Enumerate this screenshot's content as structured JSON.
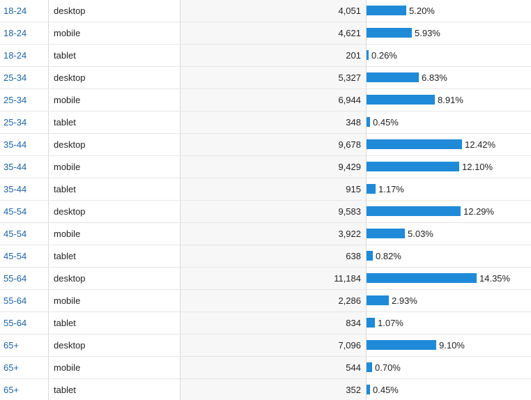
{
  "rows": [
    {
      "age": "18-24",
      "device": "desktop",
      "count": "4,051",
      "percent": "5.20%",
      "fraction": 0.052
    },
    {
      "age": "18-24",
      "device": "mobile",
      "count": "4,621",
      "percent": "5.93%",
      "fraction": 0.0593
    },
    {
      "age": "18-24",
      "device": "tablet",
      "count": "201",
      "percent": "0.26%",
      "fraction": 0.0026
    },
    {
      "age": "25-34",
      "device": "desktop",
      "count": "5,327",
      "percent": "6.83%",
      "fraction": 0.0683
    },
    {
      "age": "25-34",
      "device": "mobile",
      "count": "6,944",
      "percent": "8.91%",
      "fraction": 0.0891
    },
    {
      "age": "25-34",
      "device": "tablet",
      "count": "348",
      "percent": "0.45%",
      "fraction": 0.0045
    },
    {
      "age": "35-44",
      "device": "desktop",
      "count": "9,678",
      "percent": "12.42%",
      "fraction": 0.1242
    },
    {
      "age": "35-44",
      "device": "mobile",
      "count": "9,429",
      "percent": "12.10%",
      "fraction": 0.121
    },
    {
      "age": "35-44",
      "device": "tablet",
      "count": "915",
      "percent": "1.17%",
      "fraction": 0.0117
    },
    {
      "age": "45-54",
      "device": "desktop",
      "count": "9,583",
      "percent": "12.29%",
      "fraction": 0.1229
    },
    {
      "age": "45-54",
      "device": "mobile",
      "count": "3,922",
      "percent": "5.03%",
      "fraction": 0.0503
    },
    {
      "age": "45-54",
      "device": "tablet",
      "count": "638",
      "percent": "0.82%",
      "fraction": 0.0082
    },
    {
      "age": "55-64",
      "device": "desktop",
      "count": "11,184",
      "percent": "14.35%",
      "fraction": 0.1435
    },
    {
      "age": "55-64",
      "device": "mobile",
      "count": "2,286",
      "percent": "2.93%",
      "fraction": 0.0293
    },
    {
      "age": "55-64",
      "device": "tablet",
      "count": "834",
      "percent": "1.07%",
      "fraction": 0.0107
    },
    {
      "age": "65+",
      "device": "desktop",
      "count": "7,096",
      "percent": "9.10%",
      "fraction": 0.091
    },
    {
      "age": "65+",
      "device": "mobile",
      "count": "544",
      "percent": "0.70%",
      "fraction": 0.007
    },
    {
      "age": "65+",
      "device": "tablet",
      "count": "352",
      "percent": "0.45%",
      "fraction": 0.0045
    }
  ],
  "colors": {
    "bar": "#1f8ad8",
    "link": "#1a64a8"
  }
}
